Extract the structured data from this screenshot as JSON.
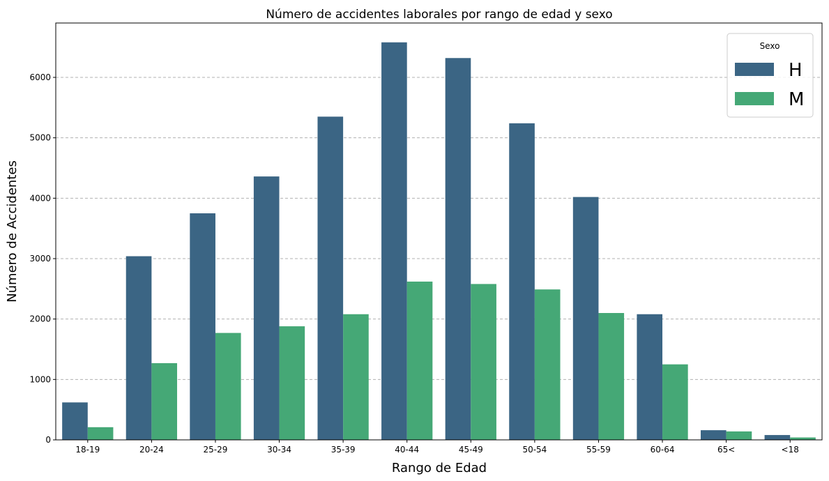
{
  "chart_data": {
    "type": "bar",
    "title": "Número de accidentes laborales por rango de edad y sexo",
    "xlabel": "Rango de Edad",
    "ylabel": "Número de Accidentes",
    "categories": [
      "18-19",
      "20-24",
      "25-29",
      "30-34",
      "35-39",
      "40-44",
      "45-49",
      "50-54",
      "55-59",
      "60-64",
      "65<",
      "<18"
    ],
    "series": [
      {
        "name": "H",
        "color": "#3b6584",
        "values": [
          620,
          3040,
          3750,
          4360,
          5350,
          6580,
          6320,
          5240,
          4020,
          2080,
          160,
          80
        ]
      },
      {
        "name": "M",
        "color": "#45a876",
        "values": [
          210,
          1270,
          1770,
          1880,
          2080,
          2620,
          2580,
          2490,
          2100,
          1250,
          140,
          40
        ]
      }
    ],
    "ylim": [
      0,
      6900
    ],
    "yticks": [
      0,
      1000,
      2000,
      3000,
      4000,
      5000,
      6000
    ],
    "grid": "y-dashed",
    "legend": {
      "title": "Sexo",
      "position": "top-right"
    }
  }
}
